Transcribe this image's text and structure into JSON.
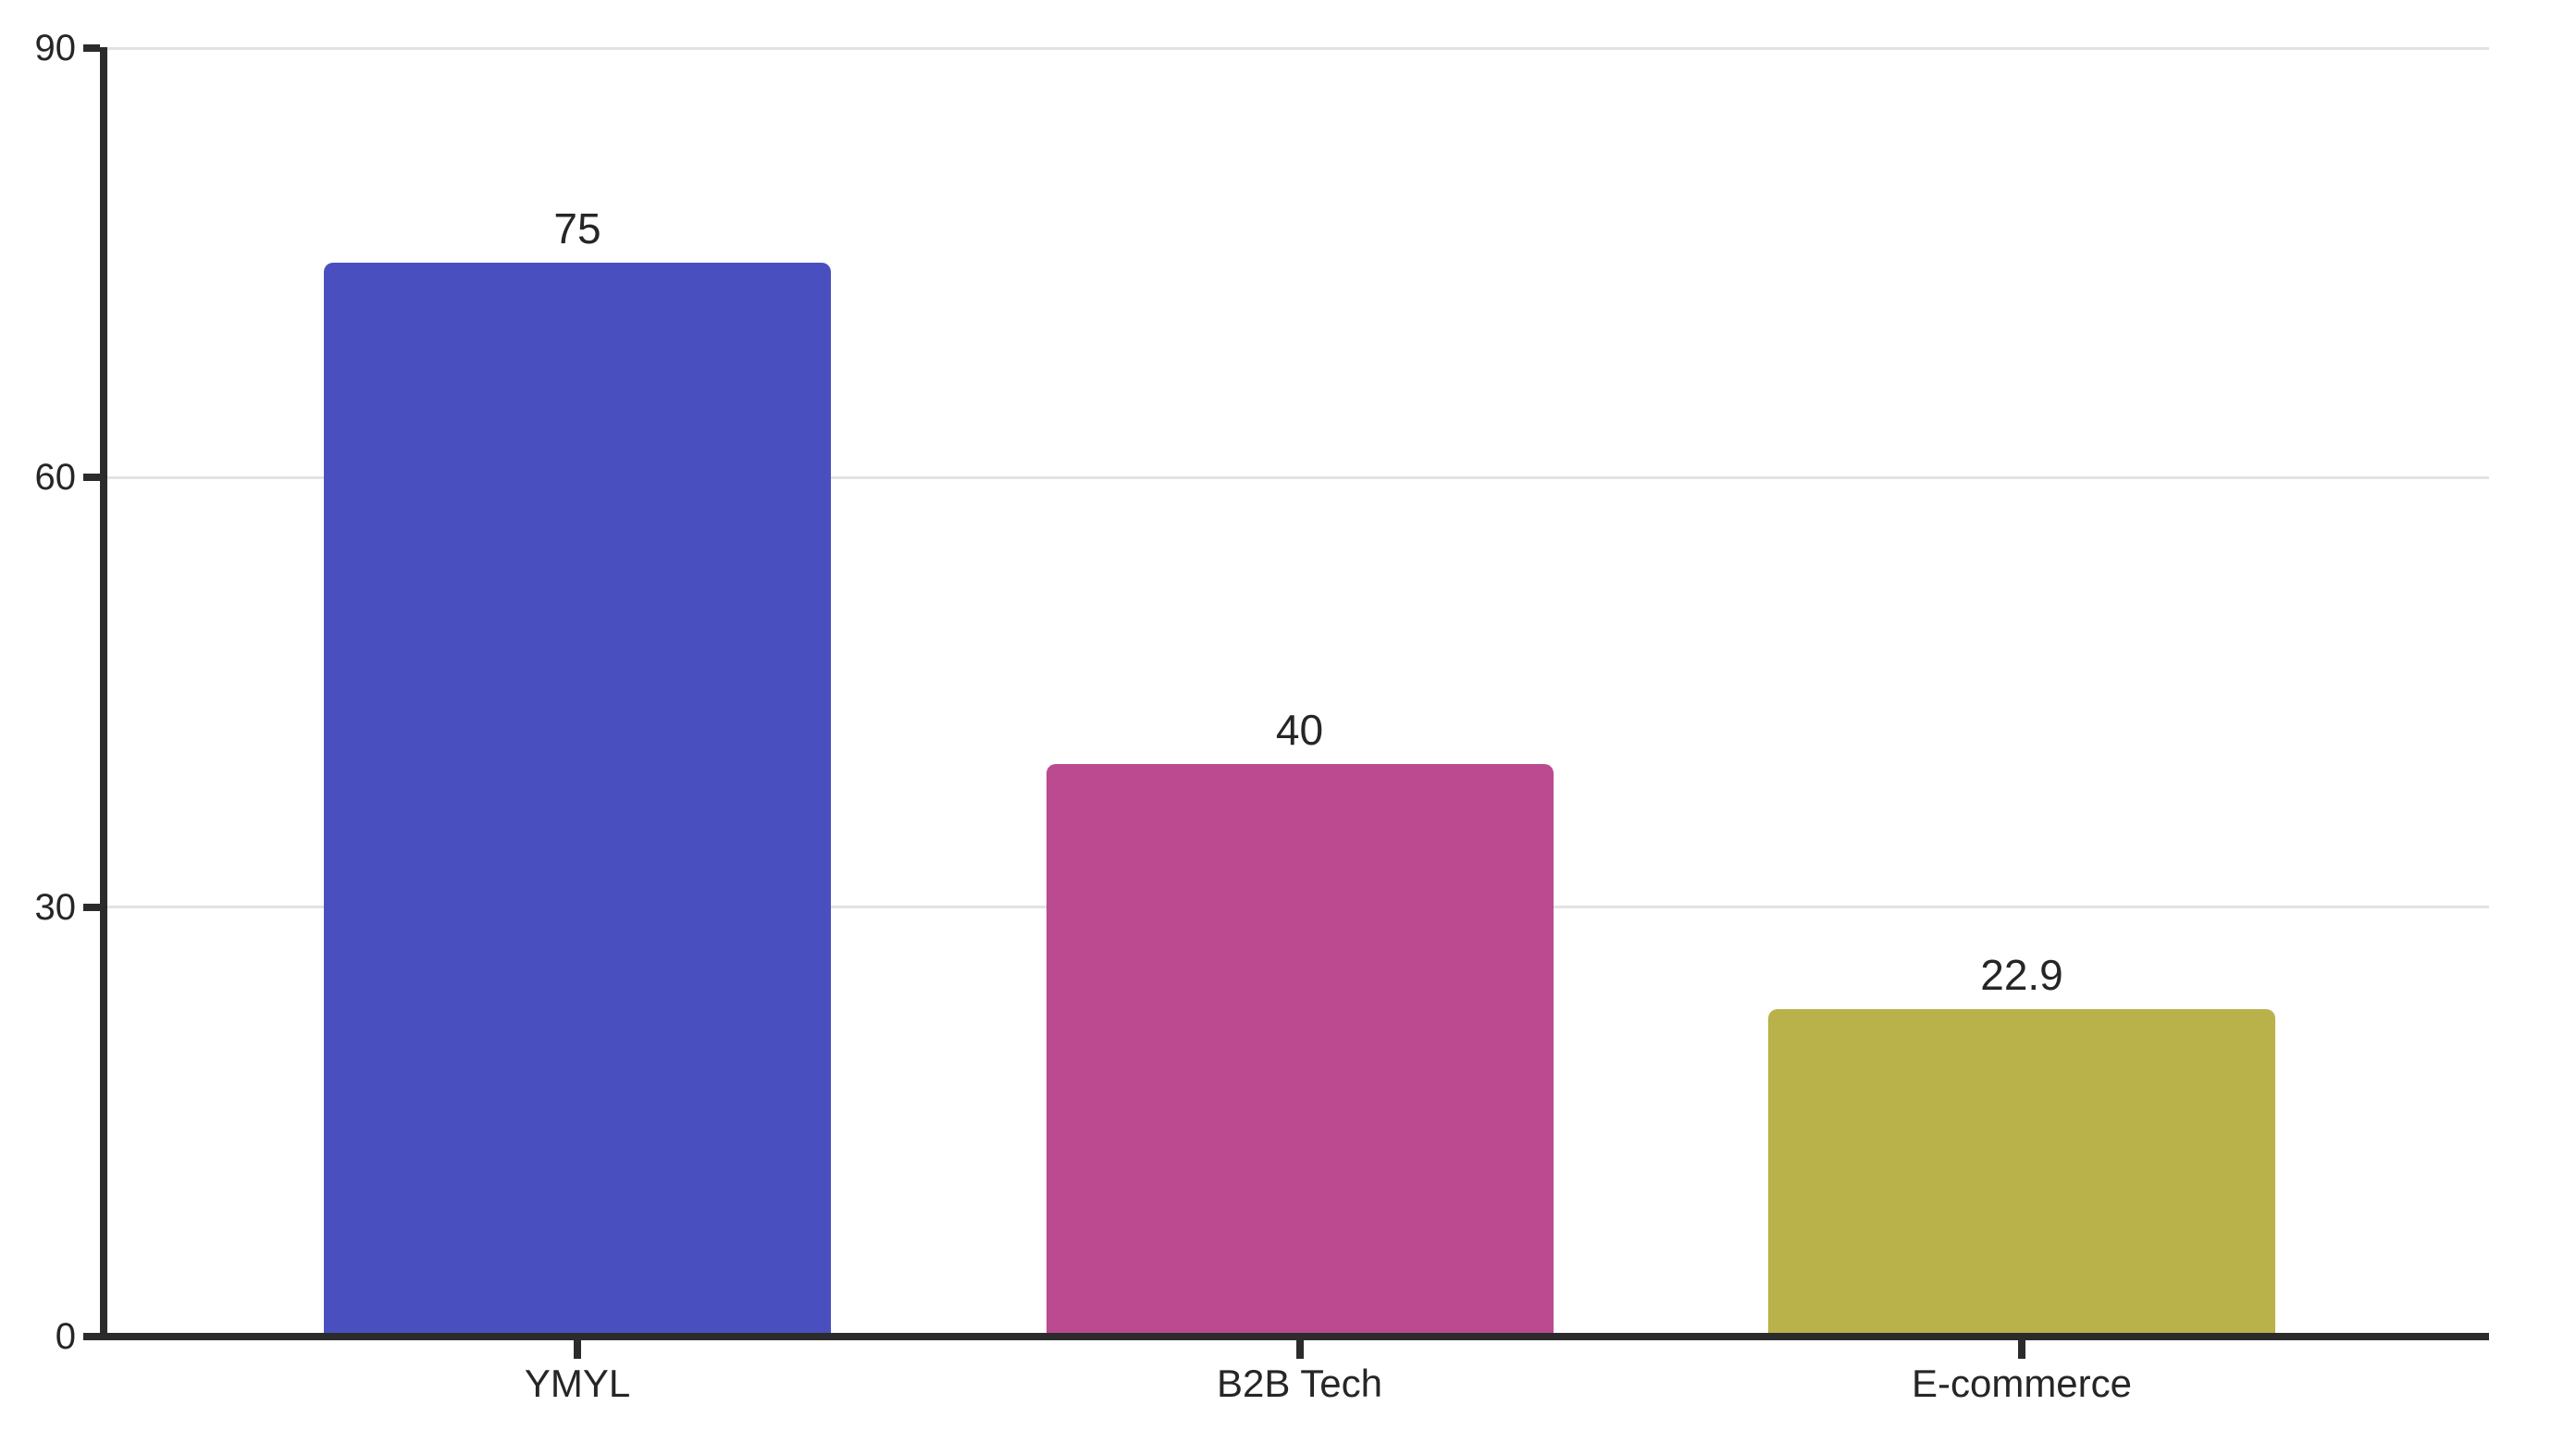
{
  "chart_data": {
    "type": "bar",
    "title": "",
    "xlabel": "",
    "ylabel": "",
    "categories": [
      "YMYL",
      "B2B Tech",
      "E-commerce"
    ],
    "values": [
      75,
      40,
      22.9
    ],
    "value_labels": [
      "75",
      "40",
      "22.9"
    ],
    "bar_colors": [
      "#4A4FC0",
      "#BB4A90",
      "#B9B24B"
    ],
    "ylim": [
      0,
      90
    ],
    "yticks": [
      0,
      30,
      60,
      90
    ],
    "ytick_labels": [
      "0",
      "30",
      "60",
      "90"
    ],
    "grid": true,
    "legend": false,
    "colors": {
      "axis": "#2B2B2B",
      "grid": "#E2E2E2",
      "text": "#262626",
      "background": "#FFFFFF"
    }
  }
}
